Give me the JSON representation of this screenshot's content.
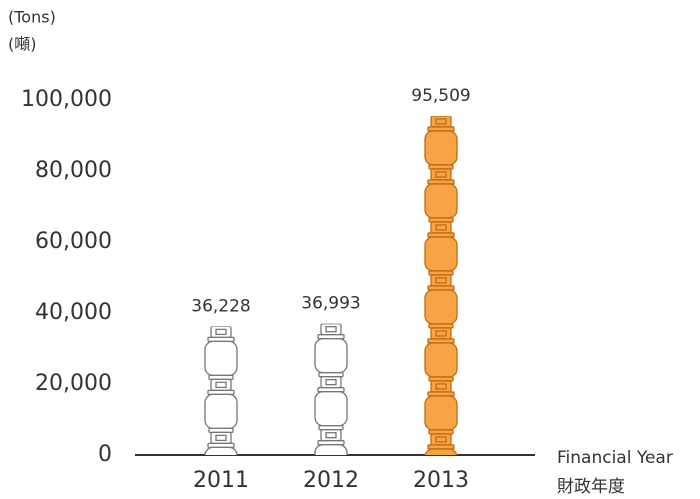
{
  "chart_data": {
    "type": "bar",
    "y_label": "(Tons)",
    "y_label_zh": "(噸)",
    "x_label": "Financial Year",
    "x_label_zh": "財政年度",
    "categories": [
      "2011",
      "2012",
      "2013"
    ],
    "values": [
      36228,
      36993,
      95509
    ],
    "value_labels": [
      "36,228",
      "36,993",
      "95,509"
    ],
    "colors": [
      "#ffffff",
      "#ffffff",
      "#f7a446"
    ],
    "ylim": [
      0,
      100000
    ],
    "yticks": [
      0,
      {
        "value": 20000,
        "label": "20,000"
      },
      {
        "value": 40000,
        "label": "40,000"
      },
      {
        "value": 60000,
        "label": "60,000"
      },
      {
        "value": 80000,
        "label": "80,000"
      },
      {
        "value": 100000,
        "label": "100,000"
      }
    ],
    "grid": false
  }
}
